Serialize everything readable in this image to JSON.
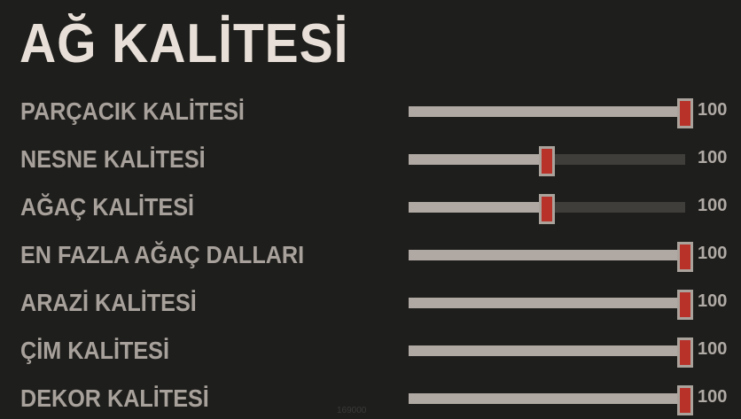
{
  "title": "AĞ KALİTESİ",
  "sliders": [
    {
      "label": "PARÇACIK KALİTESİ",
      "value": "100",
      "fraction": 1.0
    },
    {
      "label": "NESNE KALİTESİ",
      "value": "100",
      "fraction": 0.5
    },
    {
      "label": "AĞAÇ KALİTESİ",
      "value": "100",
      "fraction": 0.5
    },
    {
      "label": "EN FAZLA AĞAÇ DALLARI",
      "value": "100",
      "fraction": 1.0
    },
    {
      "label": "ARAZİ KALİTESİ",
      "value": "100",
      "fraction": 1.0
    },
    {
      "label": "ÇİM KALİTESİ",
      "value": "100",
      "fraction": 1.0
    },
    {
      "label": "DEKOR KALİTESİ",
      "value": "100",
      "fraction": 1.0
    }
  ],
  "watermark": "169000",
  "colors": {
    "thumb": "#b8322a",
    "fill": "#b0a9a3",
    "track": "#403e3a"
  }
}
